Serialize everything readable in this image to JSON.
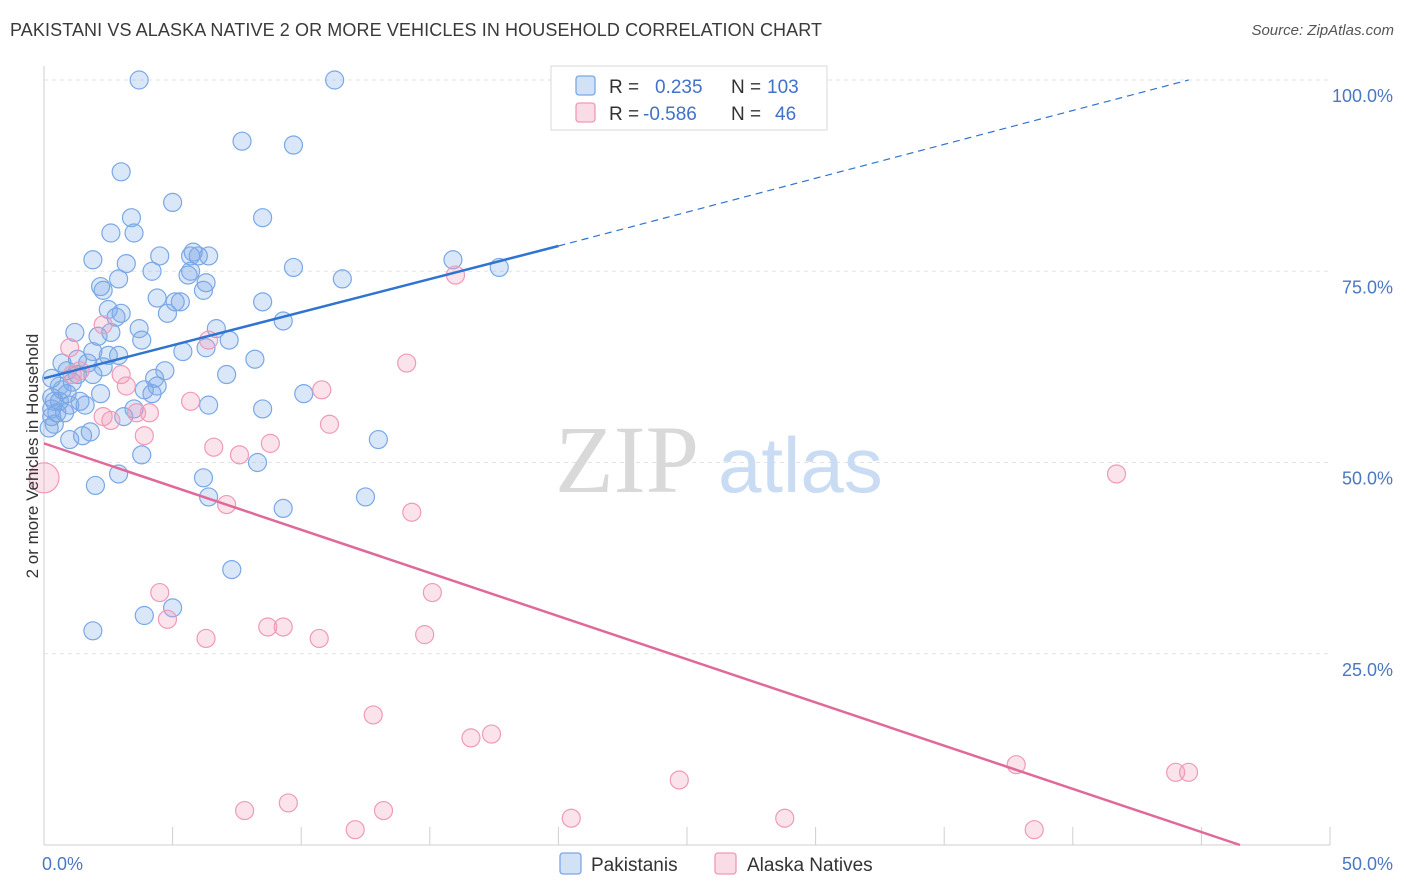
{
  "title": "PAKISTANI VS ALASKA NATIVE 2 OR MORE VEHICLES IN HOUSEHOLD CORRELATION CHART",
  "source": "Source: ZipAtlas.com",
  "watermark": {
    "zip": "ZIP",
    "atlas": "atlas"
  },
  "colors": {
    "blue": "#7aa8e6",
    "blue_fill": "rgba(122,168,230,0.28)",
    "blue_line": "#2f74d0",
    "pink": "#ef9ab8",
    "pink_fill": "rgba(239,154,184,0.28)",
    "pink_line": "#e0699a",
    "grid": "#e3e3e3",
    "tick_label": "#4a78c2"
  },
  "legend": {
    "rows": [
      {
        "r_label": "R =",
        "r_value": "0.235",
        "n_label": "N =",
        "n_value": "103"
      },
      {
        "r_label": "R =",
        "r_value": "-0.586",
        "n_label": "N =",
        "n_value": "46"
      }
    ]
  },
  "bottom_legend": [
    "Pakistanis",
    "Alaska Natives"
  ],
  "chart_data": {
    "type": "scatter",
    "title": "PAKISTANI VS ALASKA NATIVE 2 OR MORE VEHICLES IN HOUSEHOLD CORRELATION CHART",
    "xlabel": "",
    "ylabel": "2 or more Vehicles in Household",
    "xlim": [
      0,
      50
    ],
    "ylim": [
      0,
      100
    ],
    "x_tick_labels": [
      "0.0%",
      "50.0%"
    ],
    "y_tick_labels": [
      "100.0%",
      "75.0%",
      "50.0%",
      "25.0%"
    ],
    "y_ticks": [
      100,
      75,
      50,
      25
    ],
    "grid": true,
    "legend_placement": "top-center",
    "series": [
      {
        "name": "Pakistanis",
        "R": 0.235,
        "N": 103,
        "trend": {
          "x": [
            0,
            20
          ],
          "y": [
            61,
            78.3
          ]
        },
        "trend_dashed": {
          "x": [
            20,
            44.5
          ],
          "y": [
            78.3,
            100
          ]
        },
        "points": [
          [
            3.7,
            100
          ],
          [
            11.3,
            100
          ],
          [
            7.7,
            92
          ],
          [
            9.7,
            91.5
          ],
          [
            3,
            88
          ],
          [
            5,
            84
          ],
          [
            8.5,
            82
          ],
          [
            3.4,
            82
          ],
          [
            2.6,
            80
          ],
          [
            3.5,
            80
          ],
          [
            4.5,
            77
          ],
          [
            5.7,
            77
          ],
          [
            6,
            77
          ],
          [
            5.8,
            77.5
          ],
          [
            6.4,
            77
          ],
          [
            1.9,
            76.5
          ],
          [
            3.2,
            76
          ],
          [
            9.7,
            75.5
          ],
          [
            15.9,
            76.5
          ],
          [
            17.7,
            75.5
          ],
          [
            4.2,
            75
          ],
          [
            5.6,
            74.5
          ],
          [
            5.7,
            75
          ],
          [
            2.9,
            74
          ],
          [
            11.6,
            74
          ],
          [
            6.3,
            73.5
          ],
          [
            2.2,
            73
          ],
          [
            6.2,
            72.5
          ],
          [
            2.3,
            72.5
          ],
          [
            4.4,
            71.5
          ],
          [
            5.1,
            71
          ],
          [
            5.3,
            71
          ],
          [
            8.5,
            71
          ],
          [
            2.5,
            70
          ],
          [
            3,
            69.5
          ],
          [
            2.8,
            69
          ],
          [
            9.3,
            68.5
          ],
          [
            3.7,
            67.5
          ],
          [
            6.7,
            67.5
          ],
          [
            1.2,
            67
          ],
          [
            2.1,
            66.5
          ],
          [
            7.2,
            66
          ],
          [
            3.8,
            66
          ],
          [
            6.3,
            65
          ],
          [
            1.9,
            64.5
          ],
          [
            2.9,
            64
          ],
          [
            2.5,
            64
          ],
          [
            8.2,
            63.5
          ],
          [
            1.3,
            63.5
          ],
          [
            0.7,
            63
          ],
          [
            1.7,
            63
          ],
          [
            2.3,
            62.5
          ],
          [
            1.9,
            61.5
          ],
          [
            0.9,
            62
          ],
          [
            1.3,
            61.5
          ],
          [
            0.3,
            61
          ],
          [
            4.3,
            61
          ],
          [
            0.6,
            60
          ],
          [
            1.1,
            60.5
          ],
          [
            0.7,
            59.5
          ],
          [
            4.4,
            60
          ],
          [
            3.9,
            59.5
          ],
          [
            0.9,
            59
          ],
          [
            2.2,
            59
          ],
          [
            4.2,
            59
          ],
          [
            0.3,
            58.5
          ],
          [
            0.4,
            58
          ],
          [
            0.6,
            58
          ],
          [
            1,
            57.5
          ],
          [
            1.4,
            58
          ],
          [
            0.3,
            57
          ],
          [
            0.5,
            56.5
          ],
          [
            0.8,
            56.5
          ],
          [
            8.5,
            57
          ],
          [
            6.4,
            57.5
          ],
          [
            3.5,
            57
          ],
          [
            3.1,
            56
          ],
          [
            0.3,
            56
          ],
          [
            1.8,
            54
          ],
          [
            1.5,
            53.5
          ],
          [
            1,
            53
          ],
          [
            13,
            53
          ],
          [
            3.8,
            51
          ],
          [
            8.3,
            50
          ],
          [
            2.9,
            48.5
          ],
          [
            6.2,
            48
          ],
          [
            2,
            47
          ],
          [
            12.5,
            45.5
          ],
          [
            6.4,
            45.5
          ],
          [
            9.3,
            44
          ],
          [
            7.3,
            36
          ],
          [
            5,
            31
          ],
          [
            3.9,
            30
          ],
          [
            1.9,
            28
          ],
          [
            0.2,
            54.5
          ],
          [
            0.4,
            55
          ],
          [
            1.6,
            57.5
          ],
          [
            4.7,
            62
          ],
          [
            5.4,
            64.5
          ],
          [
            7.1,
            61.5
          ],
          [
            10.1,
            59
          ],
          [
            2.6,
            67
          ],
          [
            4.8,
            69.5
          ]
        ]
      },
      {
        "name": "Alaska Natives",
        "R": -0.586,
        "N": 46,
        "trend": {
          "x": [
            0,
            46.5
          ],
          "y": [
            52.5,
            0
          ]
        },
        "points": [
          [
            0,
            48
          ],
          [
            2.3,
            68
          ],
          [
            1,
            65
          ],
          [
            1.1,
            61.5
          ],
          [
            16,
            74.5
          ],
          [
            6.4,
            66
          ],
          [
            14.1,
            63
          ],
          [
            3,
            61.5
          ],
          [
            3.2,
            60
          ],
          [
            10.8,
            59.5
          ],
          [
            5.7,
            58
          ],
          [
            2.3,
            56
          ],
          [
            2.6,
            55.5
          ],
          [
            4.1,
            56.5
          ],
          [
            3.6,
            56.5
          ],
          [
            11.1,
            55
          ],
          [
            3.9,
            53.5
          ],
          [
            6.6,
            52
          ],
          [
            7.6,
            51
          ],
          [
            8.8,
            52.5
          ],
          [
            7.1,
            44.5
          ],
          [
            14.3,
            43.5
          ],
          [
            41.7,
            48.5
          ],
          [
            4.5,
            33
          ],
          [
            15.1,
            33
          ],
          [
            4.8,
            29.5
          ],
          [
            6.3,
            27
          ],
          [
            8.7,
            28.5
          ],
          [
            9.3,
            28.5
          ],
          [
            10.7,
            27
          ],
          [
            14.8,
            27.5
          ],
          [
            12.8,
            17
          ],
          [
            16.6,
            14
          ],
          [
            17.4,
            14.5
          ],
          [
            24.7,
            8.5
          ],
          [
            37.8,
            10.5
          ],
          [
            44,
            9.5
          ],
          [
            44.5,
            9.5
          ],
          [
            7.8,
            4.5
          ],
          [
            9.5,
            5.5
          ],
          [
            12.1,
            2
          ],
          [
            13.2,
            4.5
          ],
          [
            20.5,
            3.5
          ],
          [
            28.8,
            3.5
          ],
          [
            38.5,
            2
          ],
          [
            1.4,
            62
          ]
        ]
      }
    ]
  }
}
